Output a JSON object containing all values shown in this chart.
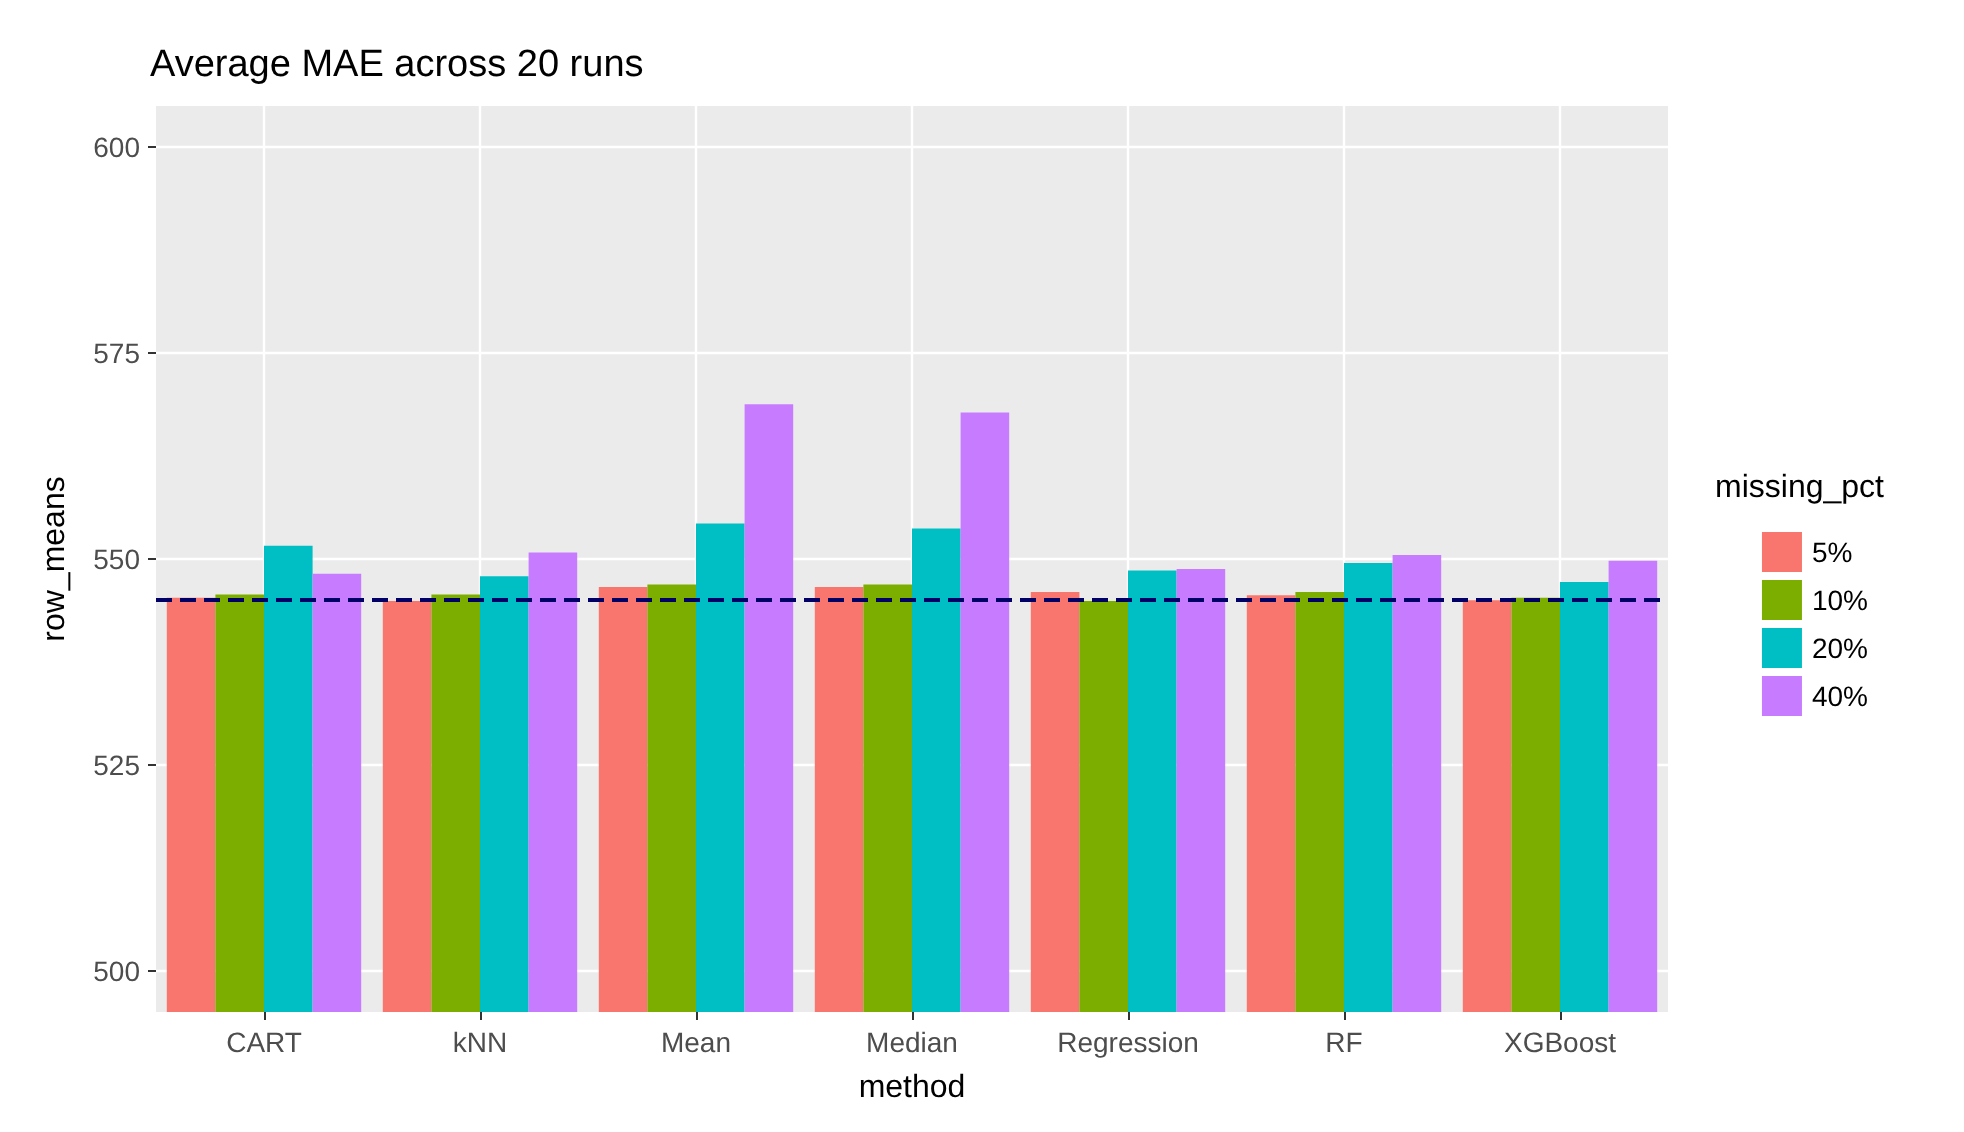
{
  "chart_data": {
    "type": "bar",
    "title": "Average MAE across 20 runs",
    "xlabel": "method",
    "ylabel": "row_means",
    "legend_title": "missing_pct",
    "categories": [
      "CART",
      "kNN",
      "Mean",
      "Median",
      "Regression",
      "RF",
      "XGBoost"
    ],
    "series": [
      {
        "name": "5%",
        "color": "#f8766d",
        "values": [
          545.3,
          544.9,
          546.6,
          546.6,
          546.0,
          545.6,
          545.0
        ]
      },
      {
        "name": "10%",
        "color": "#7cae00",
        "values": [
          545.7,
          545.7,
          546.9,
          546.9,
          544.9,
          546.0,
          545.3
        ]
      },
      {
        "name": "20%",
        "color": "#00bfc4",
        "values": [
          551.6,
          547.9,
          554.3,
          553.7,
          548.6,
          549.5,
          547.2
        ]
      },
      {
        "name": "40%",
        "color": "#c77cff",
        "values": [
          548.2,
          550.8,
          568.8,
          567.8,
          548.8,
          550.5,
          549.8
        ]
      }
    ],
    "ylim": [
      495,
      605
    ],
    "yticks": [
      500,
      525,
      550,
      575,
      600
    ],
    "grid": true,
    "legend": "right",
    "ref_lines": [
      {
        "axis": "y",
        "value": 545,
        "color": "#000066",
        "line_style": "dashed"
      }
    ]
  }
}
